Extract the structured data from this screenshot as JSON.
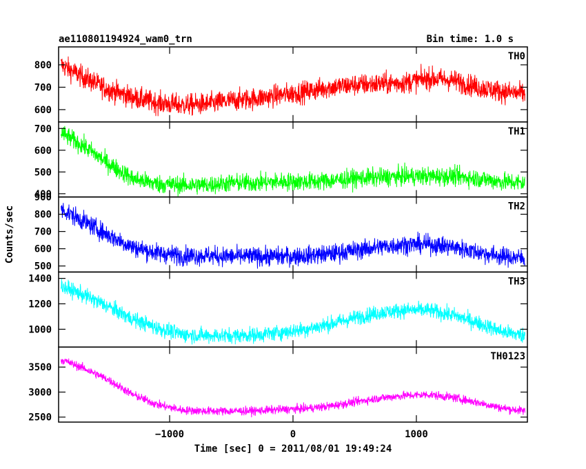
{
  "header": {
    "title": "ae110801194924_wam0_trn",
    "bin_time": "Bin time: 1.0 s"
  },
  "chart_data": {
    "type": "line",
    "title": "ae110801194924_wam0_trn",
    "subtitle": "Bin time: 1.0 s",
    "xlabel": "Time [sec] 0 = 2011/08/01 19:49:24",
    "ylabel": "Counts/sec",
    "xlim": [
      -1900,
      1900
    ],
    "x_ticks": [
      -1000,
      0,
      1000
    ],
    "x_tick_labels": [
      "−1000",
      "0",
      "1000"
    ],
    "grid": false,
    "legend": "none",
    "x": [
      -1880,
      -1700,
      -1500,
      -1300,
      -1100,
      -900,
      -700,
      -500,
      -300,
      -100,
      100,
      300,
      500,
      700,
      900,
      1100,
      1300,
      1500,
      1700,
      1880
    ],
    "panels": [
      {
        "label": "TH0",
        "color": "#ff0000",
        "ylim": [
          545,
          880
        ],
        "ticks": [
          600,
          700,
          800
        ],
        "tick_labels": [
          "600",
          "700",
          "800"
        ],
        "noise": 40,
        "values": [
          800,
          745,
          690,
          655,
          630,
          620,
          625,
          640,
          650,
          665,
          680,
          700,
          710,
          715,
          720,
          740,
          730,
          700,
          680,
          670
        ]
      },
      {
        "label": "TH1",
        "color": "#00ff00",
        "ylim": [
          385,
          730
        ],
        "ticks": [
          400,
          500,
          600,
          700
        ],
        "tick_labels": [
          "400",
          "500",
          "600",
          "700"
        ],
        "noise": 35,
        "values": [
          680,
          620,
          540,
          470,
          445,
          440,
          440,
          450,
          450,
          455,
          455,
          460,
          470,
          475,
          480,
          480,
          480,
          470,
          455,
          450
        ]
      },
      {
        "label": "TH2",
        "color": "#0000ff",
        "ylim": [
          465,
          900
        ],
        "ticks": [
          500,
          600,
          700,
          800,
          900
        ],
        "tick_labels": [
          "500",
          "600",
          "700",
          "800",
          "900"
        ],
        "noise": 45,
        "values": [
          830,
          760,
          680,
          610,
          575,
          560,
          560,
          555,
          555,
          555,
          560,
          570,
          590,
          610,
          625,
          625,
          610,
          580,
          555,
          545
        ]
      },
      {
        "label": "TH3",
        "color": "#00ffff",
        "ylim": [
          860,
          1450
        ],
        "ticks": [
          1000,
          1200,
          1400
        ],
        "tick_labels": [
          "1000",
          "1200",
          "1400"
        ],
        "noise": 50,
        "values": [
          1340,
          1270,
          1180,
          1080,
          1010,
          960,
          950,
          950,
          955,
          975,
          1000,
          1040,
          1090,
          1130,
          1150,
          1150,
          1110,
          1050,
          980,
          950
        ]
      },
      {
        "label": "TH0123",
        "color": "#ff00ff",
        "ylim": [
          2400,
          3900
        ],
        "ticks": [
          2500,
          3000,
          3500
        ],
        "tick_labels": [
          "2500",
          "3000",
          "3500"
        ],
        "noise": 70,
        "values": [
          3650,
          3480,
          3250,
          2950,
          2750,
          2640,
          2620,
          2620,
          2625,
          2650,
          2670,
          2720,
          2800,
          2880,
          2930,
          2950,
          2890,
          2790,
          2680,
          2620
        ]
      }
    ]
  }
}
